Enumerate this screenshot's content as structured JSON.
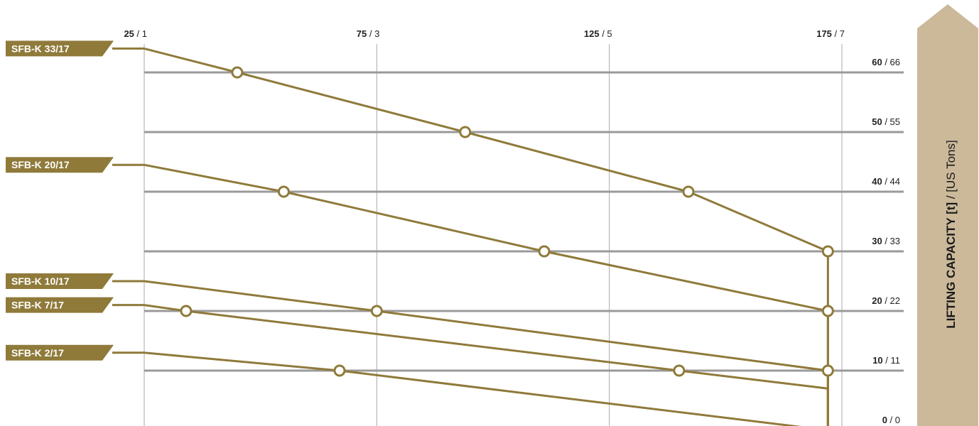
{
  "chart_data": {
    "type": "line",
    "title": "",
    "x_axis": {
      "position": "top",
      "ticks": [
        {
          "primary": "25",
          "secondary": "1"
        },
        {
          "primary": "75",
          "secondary": "3"
        },
        {
          "primary": "125",
          "secondary": "5"
        },
        {
          "primary": "175",
          "secondary": "7"
        }
      ],
      "range": [
        25,
        175
      ],
      "grid": true
    },
    "y_axis": {
      "position": "right",
      "title_bold": "LIFTING CAPACITY [t]",
      "title_sep": " / ",
      "title_normal": "[US Tons]",
      "ticks": [
        {
          "value": 0,
          "primary": "0",
          "secondary": "0"
        },
        {
          "value": 10,
          "primary": "10",
          "secondary": "11"
        },
        {
          "value": 20,
          "primary": "20",
          "secondary": "22"
        },
        {
          "value": 30,
          "primary": "30",
          "secondary": "33"
        },
        {
          "value": 40,
          "primary": "40",
          "secondary": "44"
        },
        {
          "value": 50,
          "primary": "50",
          "secondary": "55"
        },
        {
          "value": 60,
          "primary": "60",
          "secondary": "66"
        }
      ],
      "range": [
        0,
        70
      ],
      "grid": true
    },
    "series": [
      {
        "name": "SFB-K 33/17",
        "label_value": 64,
        "points": [
          [
            25,
            64
          ],
          [
            45,
            60
          ],
          [
            94,
            50
          ],
          [
            142,
            40
          ],
          [
            172,
            30
          ],
          [
            172,
            0
          ]
        ],
        "markers": [
          [
            45,
            60
          ],
          [
            94,
            50
          ],
          [
            142,
            40
          ],
          [
            172,
            30
          ]
        ]
      },
      {
        "name": "SFB-K 20/17",
        "label_value": 44.5,
        "points": [
          [
            25,
            44.5
          ],
          [
            55,
            40
          ],
          [
            111,
            30
          ],
          [
            172,
            20
          ],
          [
            172,
            0
          ]
        ],
        "markers": [
          [
            55,
            40
          ],
          [
            111,
            30
          ],
          [
            172,
            20
          ]
        ]
      },
      {
        "name": "SFB-K 10/17",
        "label_value": 25,
        "points": [
          [
            25,
            25
          ],
          [
            75,
            20
          ],
          [
            172,
            10
          ],
          [
            172,
            0
          ]
        ],
        "markers": [
          [
            75,
            20
          ],
          [
            172,
            10
          ]
        ]
      },
      {
        "name": "SFB-K 7/17",
        "label_value": 21,
        "points": [
          [
            25,
            21
          ],
          [
            34,
            20
          ],
          [
            140,
            10
          ],
          [
            172,
            7
          ],
          [
            172,
            0
          ]
        ],
        "markers": [
          [
            34,
            20
          ],
          [
            140,
            10
          ]
        ]
      },
      {
        "name": "SFB-K 2/17",
        "label_value": 13,
        "points": [
          [
            25,
            13
          ],
          [
            67,
            10
          ],
          [
            172,
            0
          ]
        ],
        "markers": [
          [
            67,
            10
          ]
        ]
      }
    ],
    "colors": {
      "line": "#8f7a3a",
      "label_bg": "#8f7a3a",
      "grid_major": "#9a9a9a",
      "grid_minor": "#aaaaaa",
      "axis_arrow": "#cbb99a"
    }
  }
}
